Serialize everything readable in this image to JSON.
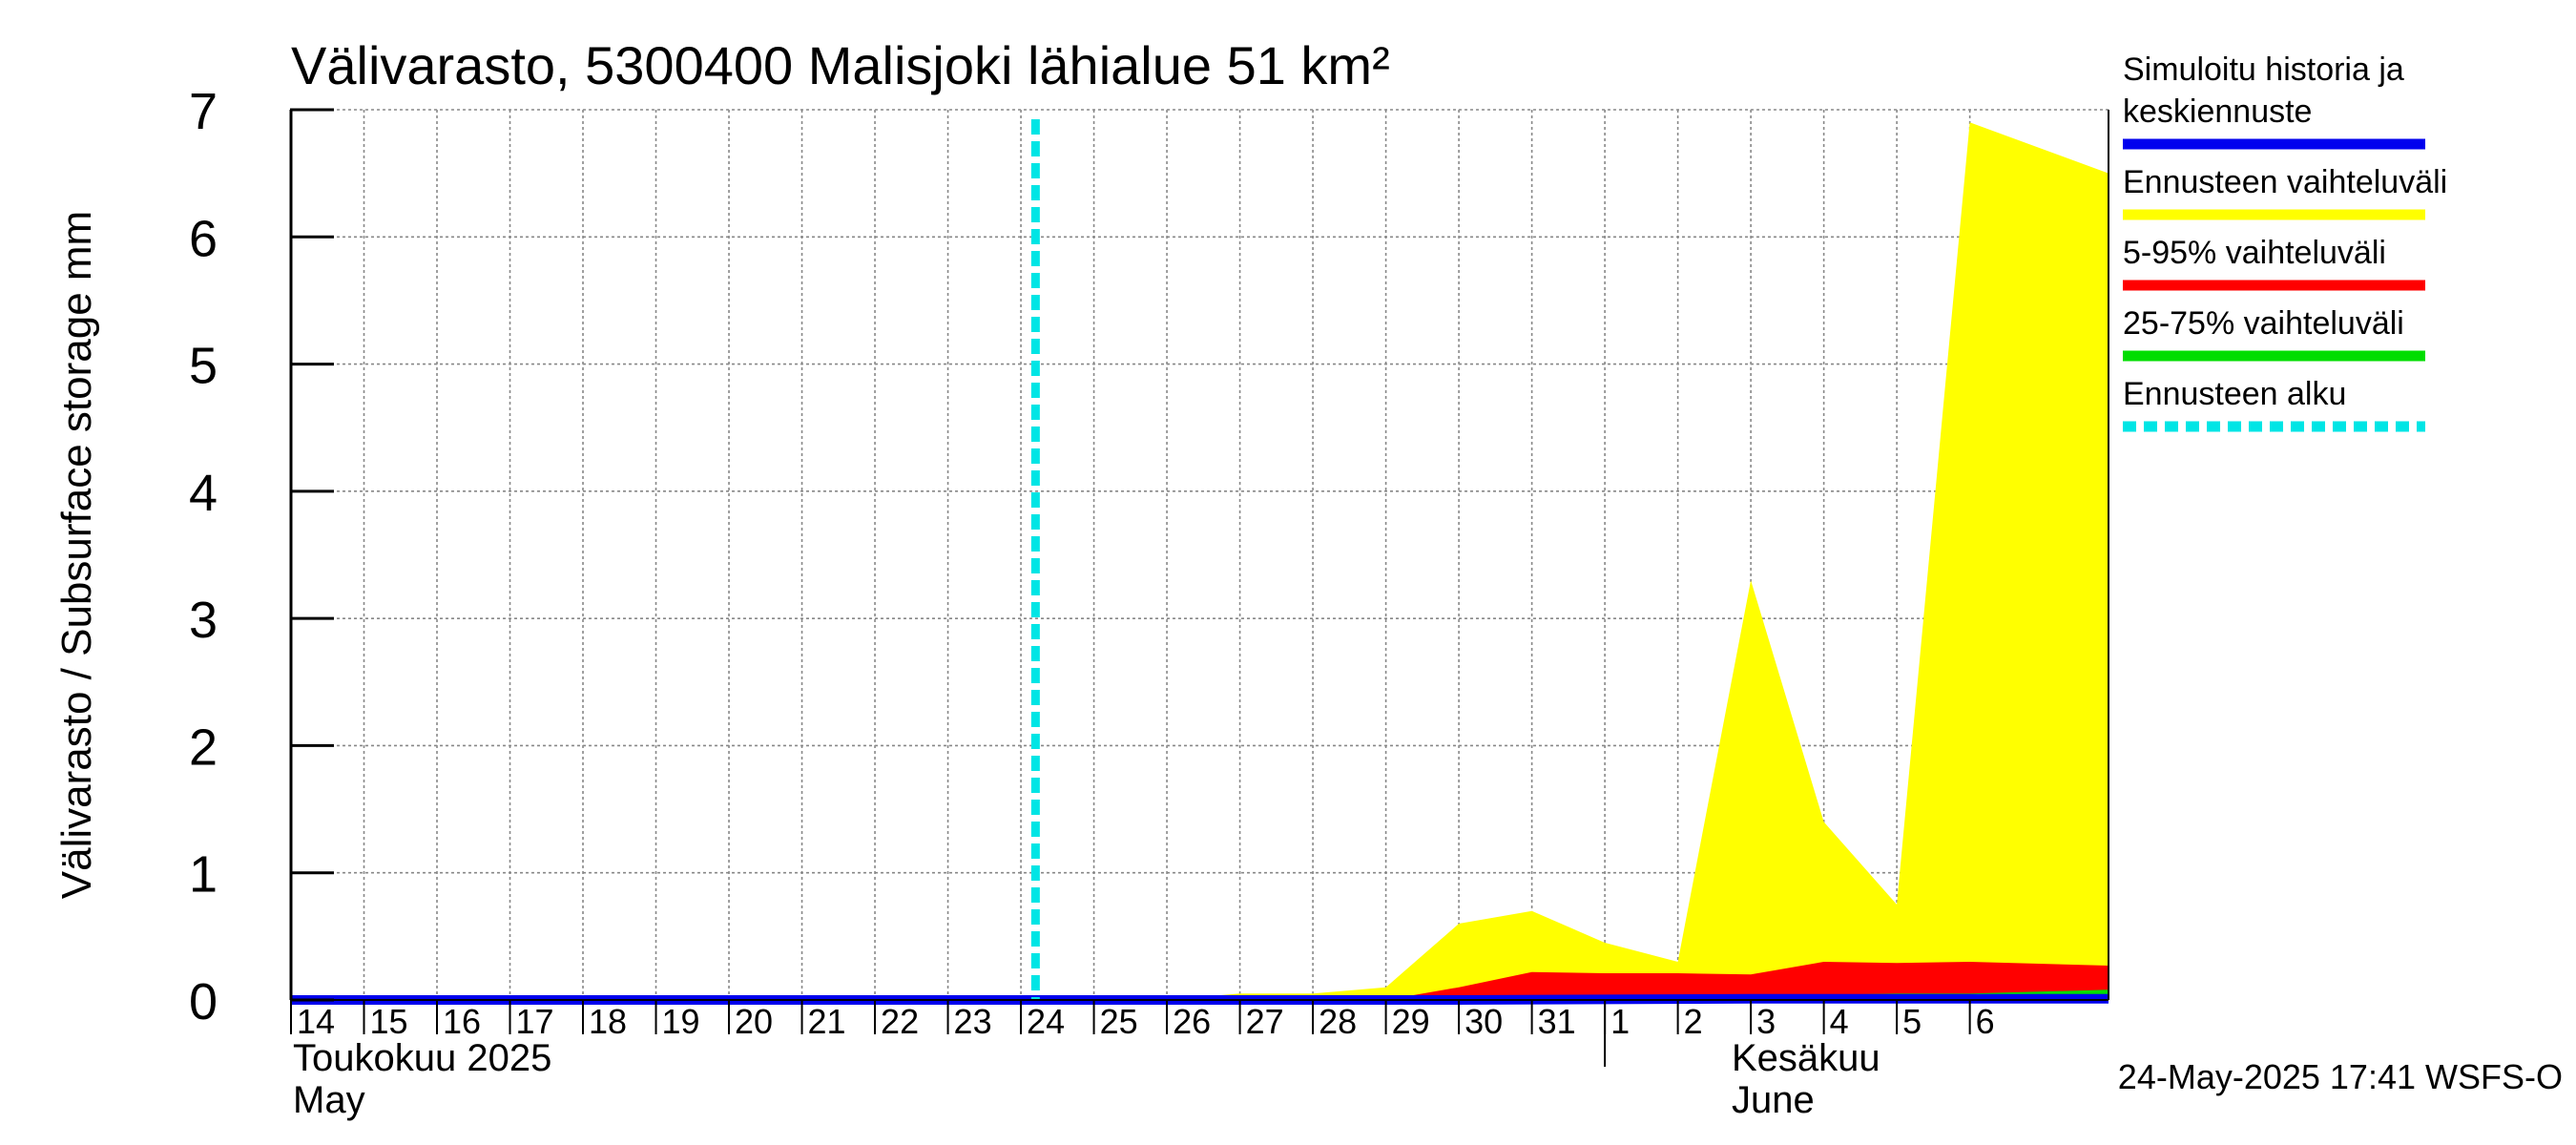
{
  "chart_data": {
    "type": "area",
    "title": "Välivarasto, 5300400 Malisjoki lähialue 51 km²",
    "ylabel": "Välivarasto / Subsurface storage  mm",
    "ylim": [
      0,
      7
    ],
    "yticks": [
      0,
      1,
      2,
      3,
      4,
      5,
      6,
      7
    ],
    "xlim": [
      14,
      38.9
    ],
    "x_tick_days": [
      14,
      15,
      16,
      17,
      18,
      19,
      20,
      21,
      22,
      23,
      24,
      25,
      26,
      27,
      28,
      29,
      30,
      31,
      32,
      33,
      34,
      35,
      36,
      37
    ],
    "x_tick_labels": [
      "14",
      "15",
      "16",
      "17",
      "18",
      "19",
      "20",
      "21",
      "22",
      "23",
      "24",
      "25",
      "26",
      "27",
      "28",
      "29",
      "30",
      "31",
      "1",
      "2",
      "3",
      "4",
      "5",
      "6"
    ],
    "month_labels": {
      "may_fi": "Toukokuu  2025",
      "may_en": "May",
      "june_fi": "Kesäkuu",
      "june_en": "June"
    },
    "month_boundary_day": 32,
    "forecast_start_day": 24.2,
    "series": [
      {
        "name": "Ennusteen vaihteluväli",
        "color": "#ffff00",
        "x": [
          14,
          26,
          27,
          28,
          29,
          30,
          31,
          32,
          33,
          34,
          35,
          36,
          37,
          38.9
        ],
        "upper": [
          0,
          0,
          0.05,
          0.05,
          0.1,
          0.6,
          0.7,
          0.45,
          0.3,
          3.3,
          1.4,
          0.75,
          6.9,
          6.5
        ],
        "lower": [
          0,
          0,
          0,
          0,
          0,
          0,
          0,
          0,
          0,
          0,
          0,
          0,
          0,
          0
        ]
      },
      {
        "name": "5-95% vaihteluväli",
        "color": "#ff0000",
        "x": [
          14,
          29,
          30,
          31,
          32,
          33,
          34,
          35,
          36,
          37,
          38.9
        ],
        "upper": [
          0,
          0,
          0.1,
          0.22,
          0.21,
          0.21,
          0.2,
          0.3,
          0.29,
          0.3,
          0.27
        ],
        "lower": [
          0,
          0,
          0,
          0,
          0,
          0,
          0,
          0,
          0,
          0,
          0
        ]
      },
      {
        "name": "25-75% vaihteluväli",
        "color": "#00dd00",
        "x": [
          14,
          29,
          30,
          31,
          32,
          33,
          34,
          35,
          36,
          37,
          38.9
        ],
        "upper": [
          0,
          0,
          0.02,
          0.03,
          0.03,
          0.03,
          0.03,
          0.04,
          0.05,
          0.05,
          0.08
        ],
        "lower": [
          0,
          0,
          0,
          0,
          0,
          0,
          0,
          0,
          0,
          0,
          0
        ]
      },
      {
        "name": "Simuloitu historia ja keskiennuste",
        "color": "#0000ee",
        "x": [
          14,
          24.2,
          30,
          34,
          36,
          38.9
        ],
        "values": [
          0,
          0,
          0,
          0.01,
          0.01,
          0.01
        ]
      }
    ],
    "legend": [
      {
        "label_lines": [
          "Simuloitu historia ja",
          "keskiennuste"
        ],
        "color": "#0000ee",
        "style": "solid"
      },
      {
        "label_lines": [
          "Ennusteen vaihteluväli"
        ],
        "color": "#ffff00",
        "style": "solid"
      },
      {
        "label_lines": [
          "5-95% vaihteluväli"
        ],
        "color": "#ff0000",
        "style": "solid"
      },
      {
        "label_lines": [
          "25-75% vaihteluväli"
        ],
        "color": "#00dd00",
        "style": "solid"
      },
      {
        "label_lines": [
          "Ennusteen alku"
        ],
        "color": "#00e5e5",
        "style": "dashed"
      }
    ],
    "legend_position": "right",
    "grid": true,
    "footer": "24-May-2025 17:41 WSFS-O"
  }
}
